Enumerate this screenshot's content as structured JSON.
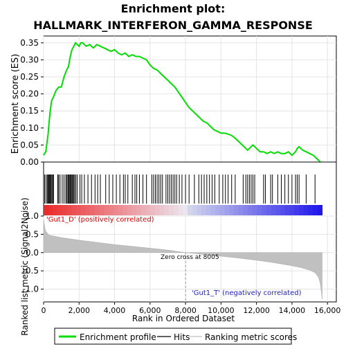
{
  "chart_data": {
    "type": "line",
    "title_line1": "Enrichment plot:",
    "title_line2": "HALLMARK_INTERFERON_GAMMA_RESPONSE",
    "top_panel": {
      "ylabel": "Enrichment score (ES)",
      "ylim": [
        0,
        0.37
      ],
      "yticks": [
        "0.00",
        "0.05",
        "0.10",
        "0.15",
        "0.20",
        "0.25",
        "0.30",
        "0.35"
      ],
      "ytick_values": [
        0,
        0.05,
        0.1,
        0.15,
        0.2,
        0.25,
        0.3,
        0.35
      ],
      "grid": true,
      "series_name": "Enrichment profile",
      "color": "#00dd00",
      "x": [
        0,
        120,
        250,
        350,
        450,
        550,
        700,
        850,
        1000,
        1150,
        1300,
        1400,
        1500,
        1600,
        1700,
        1800,
        1900,
        2000,
        2100,
        2200,
        2400,
        2600,
        2800,
        3000,
        3200,
        3400,
        3600,
        3800,
        4000,
        4200,
        4400,
        4600,
        4800,
        5000,
        5200,
        5400,
        5600,
        5800,
        6000,
        6200,
        6400,
        6600,
        6800,
        7000,
        7200,
        7400,
        7600,
        7800,
        8000,
        8200,
        8400,
        8600,
        8800,
        9000,
        9200,
        9400,
        9600,
        9800,
        10000,
        10200,
        10400,
        10600,
        10800,
        11000,
        11200,
        11400,
        11500,
        11600,
        11700,
        11800,
        11900,
        12000,
        12200,
        12400,
        12600,
        12800,
        13000,
        13200,
        13400,
        13600,
        13800,
        14000,
        14200,
        14300,
        14400,
        14600,
        14800,
        15000,
        15200,
        15400,
        15600
      ],
      "y": [
        0.02,
        0.03,
        0.08,
        0.14,
        0.18,
        0.19,
        0.21,
        0.22,
        0.22,
        0.25,
        0.27,
        0.28,
        0.31,
        0.33,
        0.34,
        0.35,
        0.345,
        0.34,
        0.35,
        0.35,
        0.34,
        0.345,
        0.335,
        0.345,
        0.34,
        0.335,
        0.33,
        0.325,
        0.33,
        0.32,
        0.315,
        0.32,
        0.31,
        0.315,
        0.31,
        0.31,
        0.305,
        0.3,
        0.285,
        0.275,
        0.27,
        0.26,
        0.25,
        0.24,
        0.23,
        0.22,
        0.205,
        0.19,
        0.175,
        0.16,
        0.15,
        0.14,
        0.13,
        0.12,
        0.115,
        0.105,
        0.095,
        0.09,
        0.085,
        0.085,
        0.082,
        0.078,
        0.07,
        0.06,
        0.05,
        0.04,
        0.035,
        0.04,
        0.045,
        0.05,
        0.045,
        0.04,
        0.03,
        0.03,
        0.025,
        0.03,
        0.025,
        0.03,
        0.025,
        0.025,
        0.03,
        0.02,
        0.03,
        0.04,
        0.045,
        0.035,
        0.03,
        0.025,
        0.02,
        0.01,
        0.0
      ],
      "hit_positions": [
        60,
        140,
        210,
        260,
        300,
        340,
        380,
        420,
        470,
        520,
        560,
        800,
        850,
        930,
        1050,
        1150,
        1250,
        1310,
        1370,
        1410,
        1450,
        1500,
        1550,
        1600,
        1640,
        1700,
        1750,
        1820,
        1900,
        2050,
        2150,
        2300,
        2500,
        2700,
        2900,
        3050,
        3200,
        3500,
        3700,
        3900,
        4100,
        4300,
        4500,
        4600,
        4750,
        5000,
        5150,
        5250,
        5400,
        5600,
        5800,
        6100,
        6200,
        6300,
        6400,
        6500,
        6600,
        6700,
        6900,
        7000,
        7100,
        7200,
        7300,
        7400,
        7500,
        7650,
        7800,
        8000,
        8200,
        8500,
        8750,
        8900,
        9050,
        9200,
        9350,
        9500,
        9650,
        9900,
        10100,
        10250,
        10400,
        10600,
        10800,
        11250,
        11400,
        11500,
        11600,
        11700,
        11800,
        11900,
        12400,
        12500,
        12800,
        12900,
        13200,
        13400,
        13600,
        13800,
        14000,
        14200,
        14300,
        14400,
        14800,
        15300
      ]
    },
    "middle_panel": {
      "label_positive": "'Gut1_D' (positively correlated)",
      "label_negative": "'Gut1_T' (negatively correlated)"
    },
    "bottom_panel": {
      "ylabel": "Ranked list metric (Signal2Noise)",
      "ylim": [
        -1.35,
        1.0
      ],
      "yticks": [
        "-1.0",
        "-0.5",
        "0.0",
        "0.5",
        "1.0"
      ],
      "ytick_values": [
        -1.0,
        -0.5,
        0.0,
        0.5,
        1.0
      ],
      "annotation": "Zero cross at 8005",
      "zero_cross": 8005,
      "metric_x": [
        0,
        100,
        300,
        600,
        1000,
        2000,
        3000,
        4000,
        5000,
        6000,
        7000,
        8005,
        9000,
        10000,
        11000,
        12000,
        13000,
        14000,
        14500,
        15000,
        15300,
        15500,
        15600,
        15650,
        15700
      ],
      "metric_y": [
        0.9,
        0.6,
        0.48,
        0.45,
        0.41,
        0.34,
        0.28,
        0.22,
        0.17,
        0.12,
        0.07,
        0.0,
        -0.05,
        -0.1,
        -0.15,
        -0.21,
        -0.28,
        -0.36,
        -0.41,
        -0.48,
        -0.55,
        -0.68,
        -0.85,
        -1.05,
        -1.28
      ]
    },
    "xlabel": "Rank in Ordered Dataset",
    "xlim": [
      0,
      16500
    ],
    "xticks": [
      "0",
      "2,000",
      "4,000",
      "6,000",
      "8,000",
      "10,000",
      "12,000",
      "14,000",
      "16,000"
    ],
    "xtick_values": [
      0,
      2000,
      4000,
      6000,
      8000,
      10000,
      12000,
      14000,
      16000
    ],
    "list_size": 15700,
    "legend": [
      {
        "label": "Enrichment profile",
        "color": "#00dd00",
        "kind": "line"
      },
      {
        "label": "Hits",
        "color": "#000000",
        "kind": "tick"
      },
      {
        "label": "Ranking metric scores",
        "color": "#c0c0c0",
        "kind": "band"
      }
    ]
  }
}
